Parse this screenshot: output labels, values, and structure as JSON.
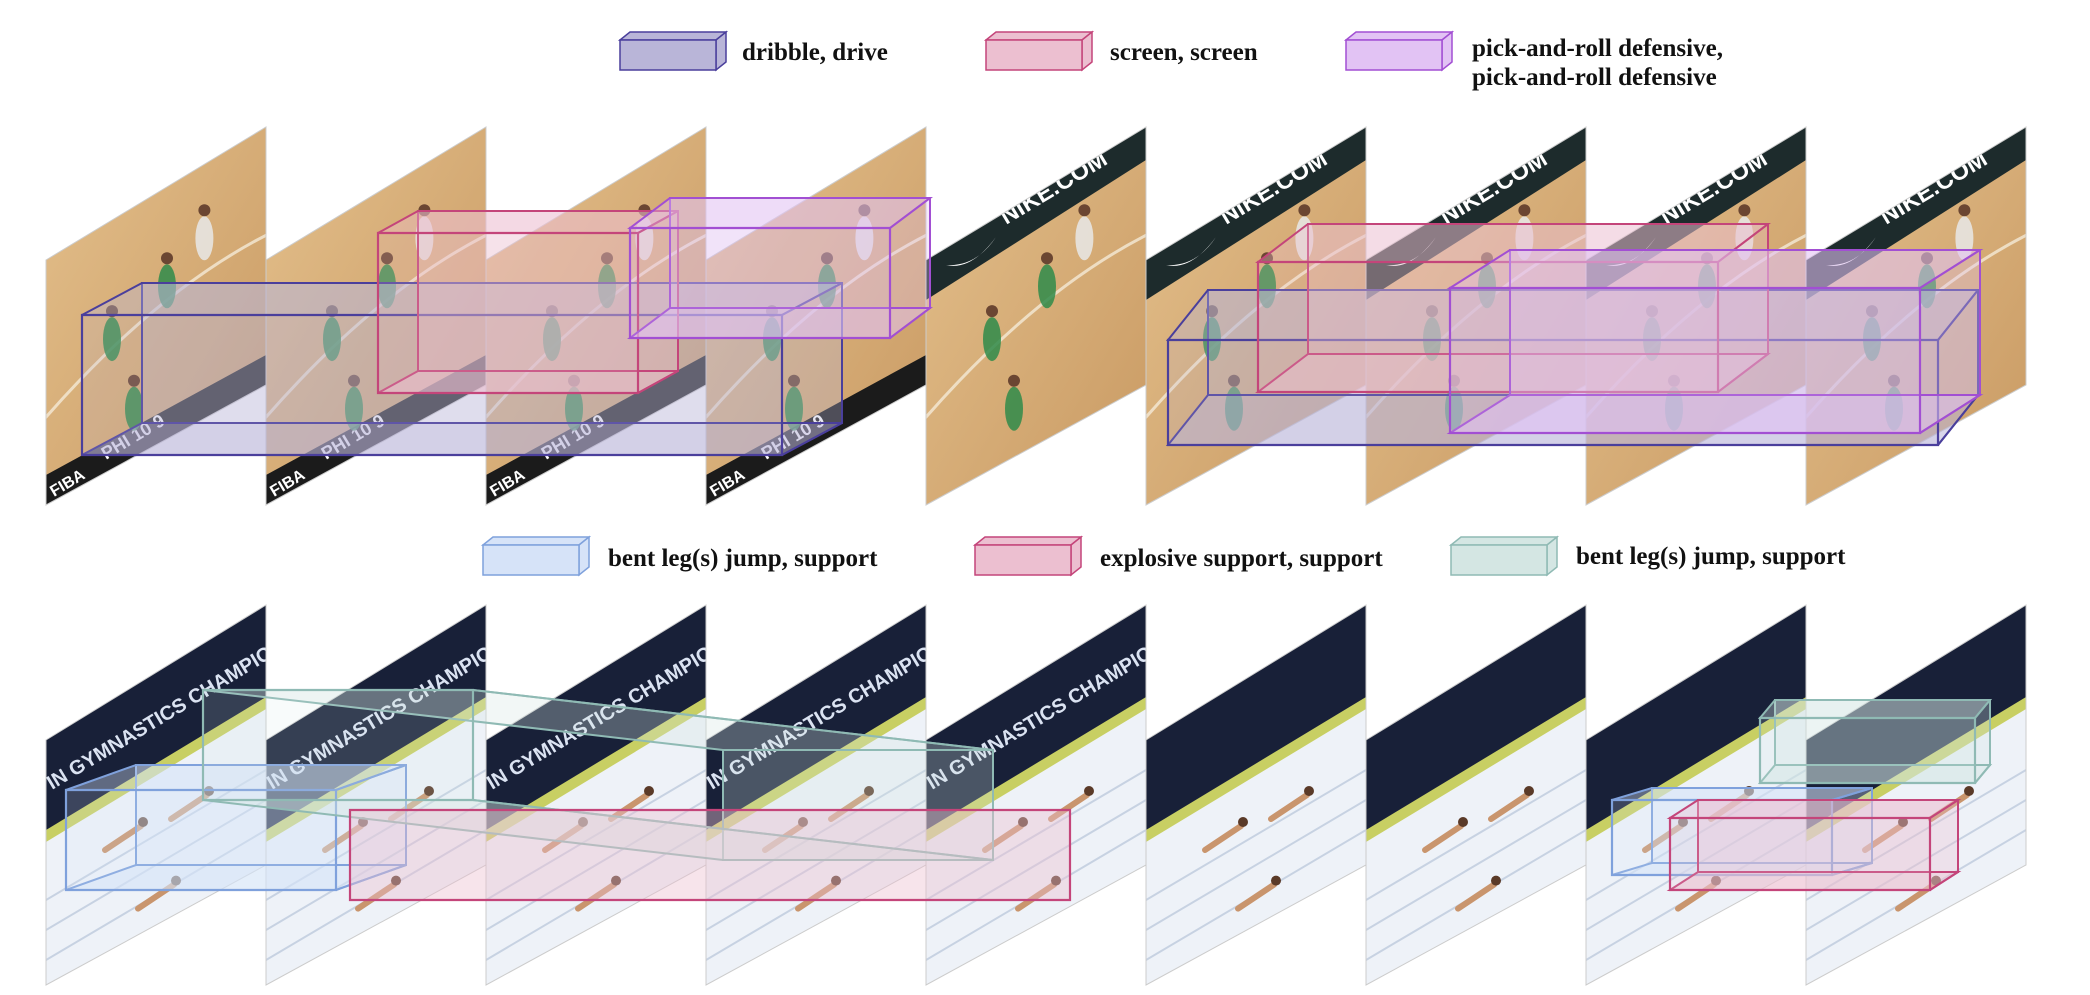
{
  "basketball": {
    "legend": [
      {
        "label": "dribble, drive",
        "fill": "#b9b5d8",
        "stroke": "#4a3f9c"
      },
      {
        "label": "screen, screen",
        "fill": "#ecbfd0",
        "stroke": "#c4457a"
      },
      {
        "label_lines": [
          "pick-and-roll defensive,",
          "pick-and-roll defensive"
        ],
        "fill": "#e2c3f4",
        "stroke": "#a24fd3"
      }
    ],
    "scoreboard": {
      "team": "PHI",
      "score_a": "10",
      "score_b": "9",
      "league": "FIBA"
    },
    "sponsor": "NIKE.COM",
    "frames": 9
  },
  "gymnastics": {
    "legend": [
      {
        "label": "bent leg(s) jump, support",
        "fill": "#d6e3f8",
        "stroke": "#7fa1dc"
      },
      {
        "label": "explosive support, support",
        "fill": "#ecbfd0",
        "stroke": "#c4457a"
      },
      {
        "label": "bent leg(s) jump, support",
        "fill": "#d4e6e3",
        "stroke": "#8fbab4"
      }
    ],
    "banner": "IN GYMNASTICS CHAMPIONSHIPS",
    "frames": 9
  },
  "colors": {
    "court": "#d9b27d",
    "court_dark": "#c49660",
    "arena_dark": "#1f2a2a",
    "mat": "#e9eef6",
    "mat_dark": "#141a2c"
  }
}
